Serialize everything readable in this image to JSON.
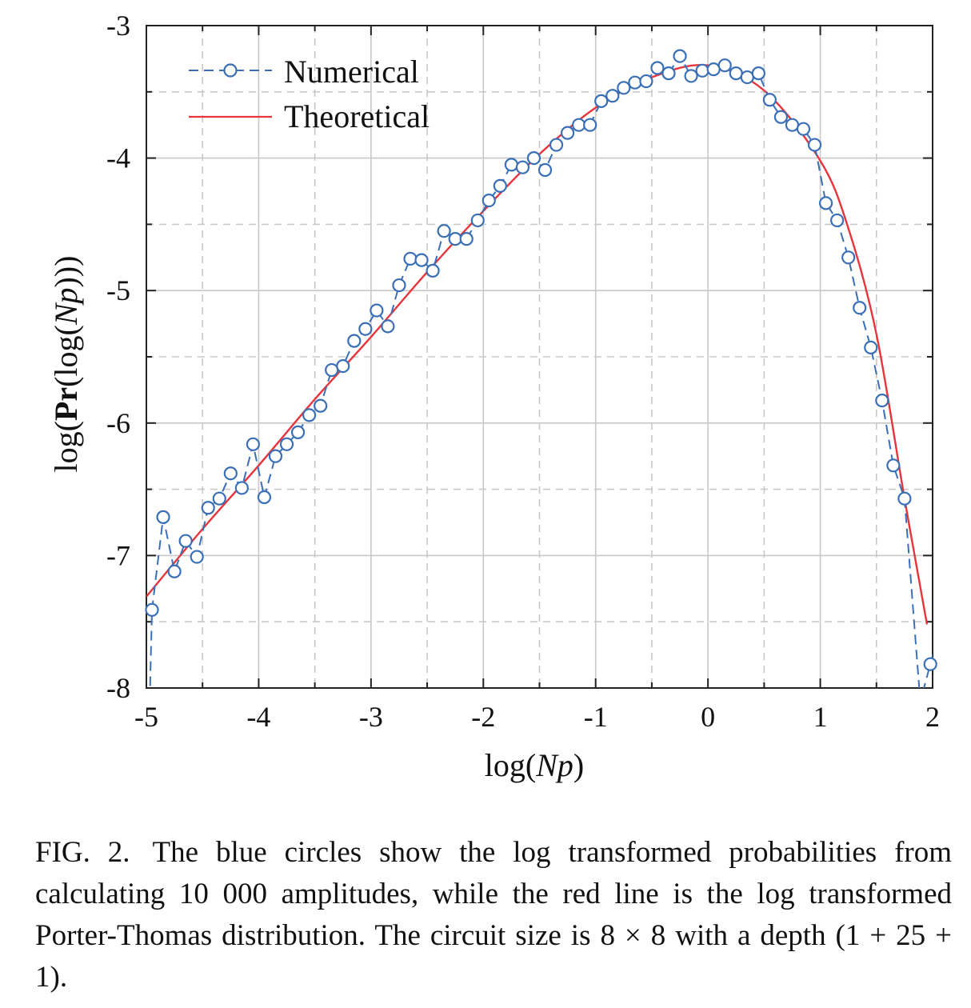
{
  "chart_data": {
    "type": "line",
    "xlabel": "log(Np)",
    "ylabel": "log(Pr(log(Np)))",
    "xlim": [
      -5,
      2
    ],
    "ylim": [
      -8,
      -3
    ],
    "x_ticks": [
      "-5",
      "-4",
      "-3",
      "-2",
      "-1",
      "0",
      "1",
      "2"
    ],
    "y_ticks": [
      "-8",
      "-7",
      "-6",
      "-5",
      "-4",
      "-3"
    ],
    "grid": true,
    "legend_position": "top-left",
    "series": [
      {
        "name": "Numerical",
        "style": "dashed line with open circles",
        "color": "#3a6fb6",
        "x": [
          -4.95,
          -4.85,
          -4.75,
          -4.65,
          -4.55,
          -4.45,
          -4.35,
          -4.25,
          -4.15,
          -4.05,
          -3.95,
          -3.85,
          -3.75,
          -3.65,
          -3.55,
          -3.45,
          -3.35,
          -3.25,
          -3.15,
          -3.05,
          -2.95,
          -2.85,
          -2.75,
          -2.65,
          -2.55,
          -2.45,
          -2.35,
          -2.25,
          -2.15,
          -2.05,
          -1.95,
          -1.85,
          -1.75,
          -1.65,
          -1.55,
          -1.45,
          -1.35,
          -1.25,
          -1.15,
          -1.05,
          -0.95,
          -0.85,
          -0.75,
          -0.65,
          -0.55,
          -0.45,
          -0.35,
          -0.25,
          -0.15,
          -0.05,
          0.05,
          0.15,
          0.25,
          0.35,
          0.45,
          0.55,
          0.65,
          0.75,
          0.85,
          0.95,
          1.05,
          1.15,
          1.25,
          1.35,
          1.45,
          1.55,
          1.65,
          1.75,
          1.98
        ],
        "y": [
          -7.41,
          -6.71,
          -7.12,
          -6.89,
          -7.01,
          -6.64,
          -6.57,
          -6.38,
          -6.49,
          -6.16,
          -6.56,
          -6.25,
          -6.16,
          -6.07,
          -5.94,
          -5.87,
          -5.6,
          -5.57,
          -5.38,
          -5.29,
          -5.15,
          -5.27,
          -4.96,
          -4.76,
          -4.77,
          -4.85,
          -4.55,
          -4.61,
          -4.61,
          -4.47,
          -4.32,
          -4.21,
          -4.05,
          -4.07,
          -4.0,
          -4.09,
          -3.9,
          -3.81,
          -3.75,
          -3.75,
          -3.57,
          -3.53,
          -3.47,
          -3.43,
          -3.42,
          -3.32,
          -3.36,
          -3.23,
          -3.38,
          -3.34,
          -3.33,
          -3.3,
          -3.36,
          -3.39,
          -3.36,
          -3.56,
          -3.69,
          -3.75,
          -3.78,
          -3.9,
          -4.34,
          -4.47,
          -4.75,
          -5.13,
          -5.43,
          -5.83,
          -6.32,
          -6.57,
          -7.82
        ]
      },
      {
        "name": "Theoretical",
        "style": "solid line",
        "color": "#e8343c",
        "x": [
          -5.0,
          -4.5,
          -4.0,
          -3.5,
          -3.0,
          -2.5,
          -2.0,
          -1.5,
          -1.0,
          -0.5,
          0.0,
          0.5,
          1.0,
          1.25,
          1.5,
          1.75,
          1.95
        ],
        "y": [
          -7.31,
          -6.8,
          -6.32,
          -5.82,
          -5.35,
          -4.86,
          -4.4,
          -3.97,
          -3.62,
          -3.39,
          -3.3,
          -3.49,
          -4.02,
          -4.53,
          -5.33,
          -6.57,
          -7.52
        ]
      }
    ]
  },
  "caption": {
    "label": "FIG. 2.",
    "text": "The blue circles show the log transformed probabilities from calculating 10 000 amplitudes, while the red line is the log transformed Porter-Thomas distribution. The circuit size is 8 × 8 with a depth (1 + 25 + 1)."
  }
}
